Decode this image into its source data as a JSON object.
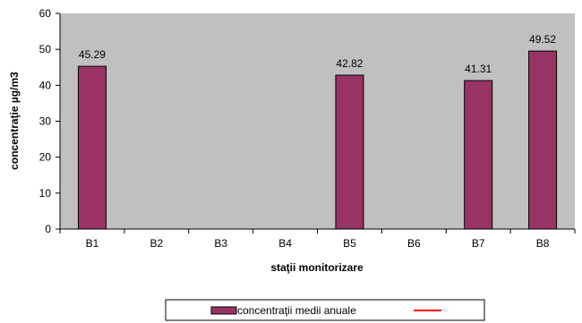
{
  "chart_data": {
    "type": "bar",
    "categories": [
      "B1",
      "B2",
      "B3",
      "B4",
      "B5",
      "B6",
      "B7",
      "B8"
    ],
    "series": [
      {
        "name": "concentraţii medii anuale",
        "values": [
          45.29,
          null,
          null,
          null,
          42.82,
          null,
          41.31,
          49.52
        ],
        "labels": [
          "45.29",
          "",
          "",
          "",
          "42.82",
          "",
          "41.31",
          "49.52"
        ],
        "color": "#993366"
      }
    ],
    "legend_extra": {
      "type": "line",
      "color": "#ff0000"
    },
    "xlabel": "staţii monitorizare",
    "ylabel": "concentraţie µg/m3",
    "ylim": [
      0,
      60
    ],
    "yticks": [
      "0",
      "10",
      "20",
      "30",
      "40",
      "50",
      "60"
    ],
    "plot_background": "#c0c0c0",
    "grid": false,
    "legend_position": "bottom"
  }
}
